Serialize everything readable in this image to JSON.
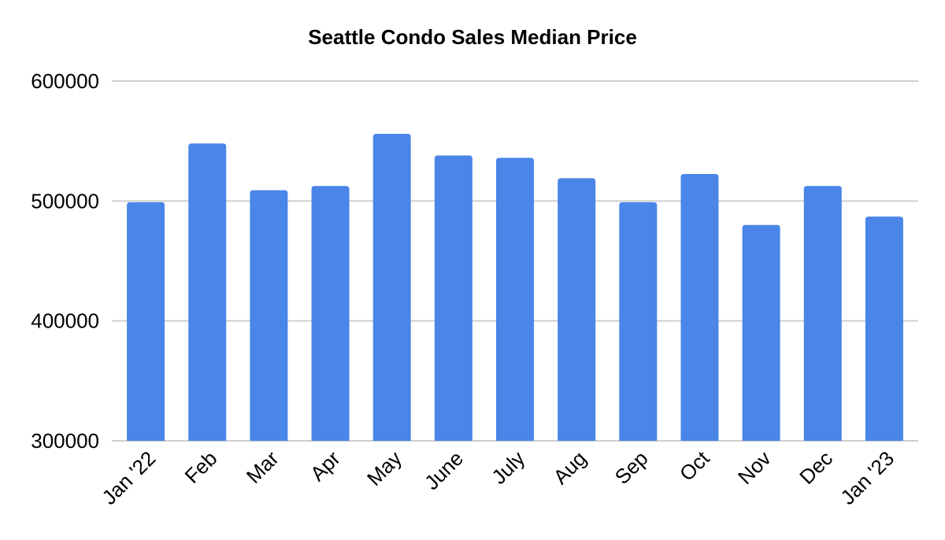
{
  "chart_data": {
    "type": "bar",
    "title": "Seattle Condo Sales Median Price",
    "xlabel": "",
    "ylabel": "",
    "categories": [
      "Jan '22",
      "Feb",
      "Mar",
      "Apr",
      "May",
      "June",
      "July",
      "Aug",
      "Sep",
      "Oct",
      "Nov",
      "Dec",
      "Jan '23"
    ],
    "values": [
      499000,
      548000,
      509000,
      512500,
      556000,
      538000,
      536000,
      519000,
      499000,
      522500,
      480000,
      512500,
      487000
    ],
    "ylim": [
      300000,
      600000
    ],
    "yticks": [
      "300000",
      "400000",
      "500000",
      "600000"
    ],
    "ytick_values": [
      300000,
      400000,
      500000,
      600000
    ],
    "grid": true,
    "legend": "none",
    "bar_color": "#4a86e8",
    "grid_color": "#cfcfcf"
  }
}
